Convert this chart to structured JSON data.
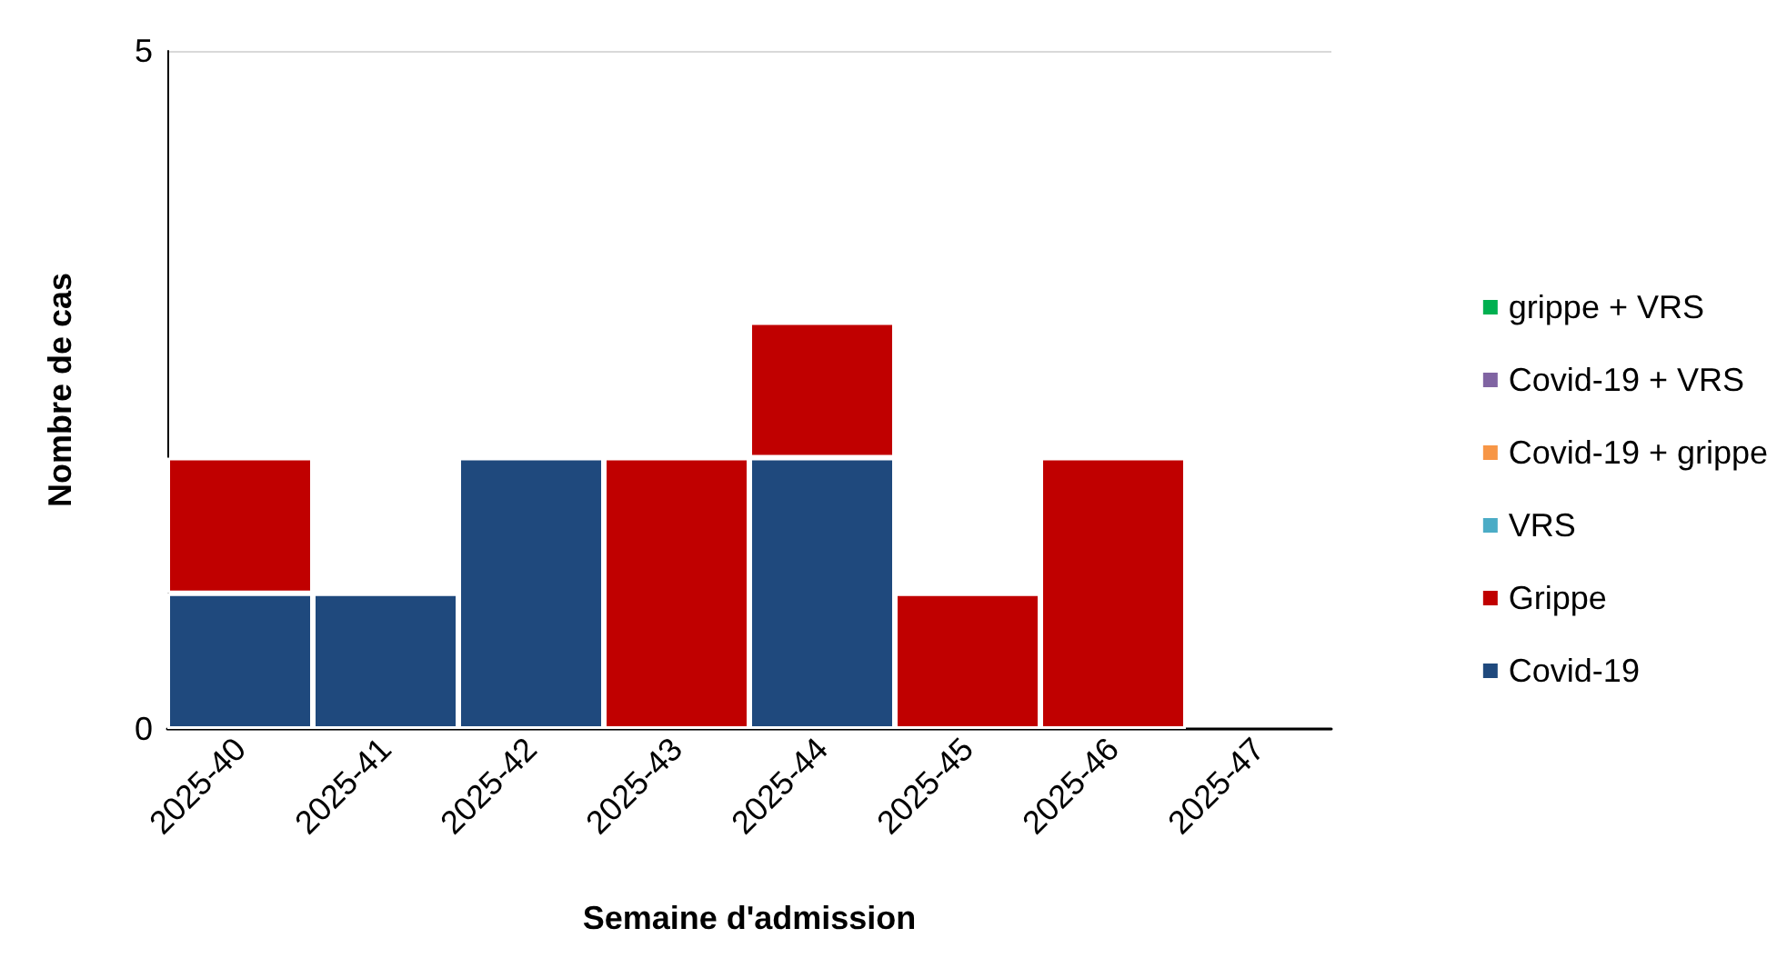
{
  "chart_data": {
    "type": "bar",
    "stacked": true,
    "xlabel": "Semaine d'admission",
    "ylabel": "Nombre de cas",
    "categories": [
      "2025-40",
      "2025-41",
      "2025-42",
      "2025-43",
      "2025-44",
      "2025-45",
      "2025-46",
      "2025-47"
    ],
    "series": [
      {
        "name": "Covid-19",
        "color": "#1f497d",
        "values": [
          1,
          1,
          2,
          0,
          2,
          0,
          0,
          0
        ]
      },
      {
        "name": "Grippe",
        "color": "#c00000",
        "values": [
          1,
          0,
          0,
          2,
          1,
          1,
          2,
          0
        ]
      },
      {
        "name": "VRS",
        "color": "#4bacc6",
        "values": [
          0,
          0,
          0,
          0,
          0,
          0,
          0,
          0
        ]
      },
      {
        "name": "Covid-19 + grippe",
        "color": "#f79646",
        "values": [
          0,
          0,
          0,
          0,
          0,
          0,
          0,
          0
        ]
      },
      {
        "name": "Covid-19 + VRS",
        "color": "#8064a2",
        "values": [
          0,
          0,
          0,
          0,
          0,
          0,
          0,
          0
        ]
      },
      {
        "name": "grippe + VRS",
        "color": "#00b050",
        "values": [
          0,
          0,
          0,
          0,
          0,
          0,
          0,
          0
        ]
      }
    ],
    "ylim": [
      0,
      5
    ],
    "yticks": [
      0,
      5
    ],
    "grid": "y",
    "legend": "right"
  }
}
